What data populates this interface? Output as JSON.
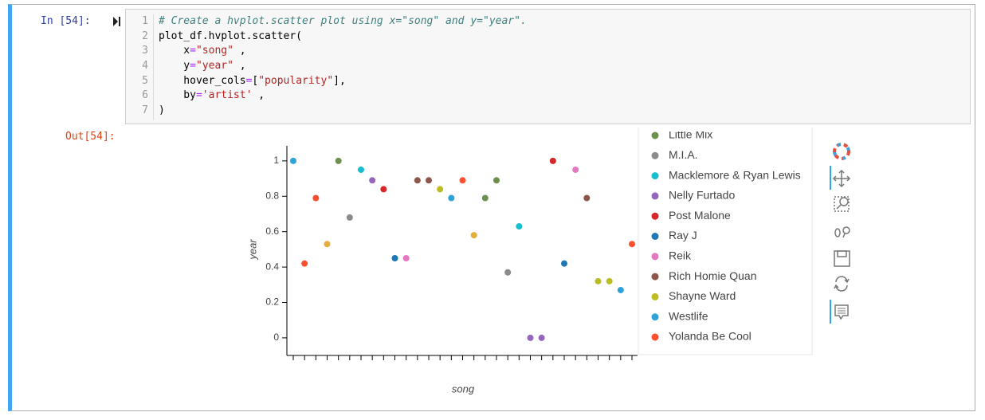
{
  "cell": {
    "in_prompt": "In [54]:",
    "out_prompt": "Out[54]:",
    "line_numbers": [
      1,
      2,
      3,
      4,
      5,
      6,
      7
    ],
    "code": [
      "# Create a hvplot.scatter plot using x=\"song\" and y=\"year\".",
      "plot_df.hvplot.scatter(",
      "    x=\"song\" ,",
      "    y=\"year\" ,",
      "    hover_cols=[\"popularity\"],",
      "    by='artist' ,",
      ")"
    ]
  },
  "chart_data": {
    "type": "scatter",
    "xlabel": "song",
    "ylabel": "year",
    "ylim": [
      -0.095,
      1.085
    ],
    "yticks": [
      0,
      0.2,
      0.4,
      0.6,
      0.8,
      1
    ],
    "grid": false,
    "legend": "right",
    "categories": [
      null,
      null,
      null,
      null,
      null,
      null,
      null,
      null,
      null,
      null,
      null,
      null,
      null,
      null,
      null,
      null,
      null,
      null,
      null,
      null,
      null,
      null,
      null,
      null,
      null,
      null,
      null,
      null,
      null,
      null,
      null
    ],
    "series": [
      {
        "color": "#e5ae38",
        "values": [
          null,
          null,
          null,
          0.53,
          null,
          null,
          null,
          null,
          null,
          null,
          null,
          null,
          null,
          null,
          null,
          null,
          0.58,
          null,
          null,
          null,
          null,
          null,
          null,
          null,
          null,
          null,
          null,
          null,
          null,
          null,
          null
        ]
      },
      {
        "name": "Little Mix",
        "color": "#6d904f",
        "values": [
          null,
          null,
          null,
          null,
          1.0,
          null,
          null,
          null,
          null,
          null,
          null,
          null,
          null,
          null,
          null,
          null,
          null,
          0.79,
          0.89,
          null,
          null,
          null,
          null,
          null,
          null,
          null,
          null,
          null,
          null,
          null,
          null
        ]
      },
      {
        "name": "M.I.A.",
        "color": "#8b8b8b",
        "values": [
          null,
          null,
          null,
          null,
          null,
          0.68,
          null,
          null,
          null,
          null,
          null,
          null,
          null,
          null,
          null,
          null,
          null,
          null,
          null,
          0.37,
          null,
          null,
          null,
          null,
          null,
          null,
          null,
          null,
          null,
          null,
          null
        ]
      },
      {
        "name": "Macklemore & Ryan Lewis",
        "color": "#17becf",
        "values": [
          null,
          null,
          null,
          null,
          null,
          null,
          0.95,
          null,
          null,
          null,
          null,
          null,
          null,
          null,
          null,
          null,
          null,
          null,
          null,
          null,
          0.63,
          null,
          null,
          null,
          null,
          null,
          null,
          null,
          null,
          null,
          null
        ]
      },
      {
        "name": "Nelly Furtado",
        "color": "#9467bd",
        "values": [
          null,
          null,
          null,
          null,
          null,
          null,
          null,
          0.89,
          null,
          null,
          null,
          null,
          null,
          null,
          null,
          null,
          null,
          null,
          null,
          null,
          null,
          0,
          0,
          null,
          null,
          null,
          null,
          null,
          null,
          null,
          null
        ]
      },
      {
        "name": "Post Malone",
        "color": "#d62728",
        "values": [
          null,
          null,
          null,
          null,
          null,
          null,
          null,
          null,
          0.84,
          null,
          null,
          null,
          null,
          null,
          null,
          null,
          null,
          null,
          null,
          null,
          null,
          null,
          null,
          1.0,
          null,
          null,
          null,
          null,
          null,
          null,
          null
        ]
      },
      {
        "name": "Ray J",
        "color": "#1f77b4",
        "values": [
          null,
          null,
          null,
          null,
          null,
          null,
          null,
          null,
          null,
          0.45,
          null,
          null,
          null,
          null,
          null,
          null,
          null,
          null,
          null,
          null,
          null,
          null,
          null,
          null,
          0.42,
          null,
          null,
          null,
          null,
          null,
          null
        ]
      },
      {
        "name": "Reik",
        "color": "#e377c2",
        "values": [
          null,
          null,
          null,
          null,
          null,
          null,
          null,
          null,
          null,
          null,
          0.45,
          null,
          null,
          null,
          null,
          null,
          null,
          null,
          null,
          null,
          null,
          null,
          null,
          null,
          null,
          0.95,
          null,
          null,
          null,
          null,
          null
        ]
      },
      {
        "name": "Rich Homie Quan",
        "color": "#8c564b",
        "values": [
          null,
          null,
          null,
          null,
          null,
          null,
          null,
          null,
          null,
          null,
          null,
          0.89,
          0.89,
          null,
          null,
          null,
          null,
          null,
          null,
          null,
          null,
          null,
          null,
          null,
          null,
          null,
          0.79,
          null,
          null,
          null,
          null
        ]
      },
      {
        "name": "Shayne Ward",
        "color": "#bcbd22",
        "values": [
          null,
          null,
          null,
          null,
          null,
          null,
          null,
          null,
          null,
          null,
          null,
          null,
          null,
          0.84,
          null,
          null,
          null,
          null,
          null,
          null,
          null,
          null,
          null,
          null,
          null,
          null,
          null,
          0.32,
          0.32,
          null,
          null
        ]
      },
      {
        "name": "Westlife",
        "color": "#30a2da",
        "values": [
          1.0,
          null,
          null,
          null,
          null,
          null,
          null,
          null,
          null,
          null,
          null,
          null,
          null,
          null,
          0.79,
          null,
          null,
          null,
          null,
          null,
          null,
          null,
          null,
          null,
          null,
          null,
          null,
          null,
          null,
          0.27,
          null
        ]
      },
      {
        "name": "Yolanda Be Cool",
        "color": "#fc4f30",
        "values": [
          null,
          0.42,
          0.79,
          null,
          null,
          null,
          null,
          null,
          null,
          null,
          null,
          null,
          null,
          null,
          null,
          0.89,
          null,
          null,
          null,
          null,
          null,
          null,
          null,
          null,
          null,
          null,
          null,
          null,
          null,
          null,
          0.53
        ]
      }
    ]
  }
}
